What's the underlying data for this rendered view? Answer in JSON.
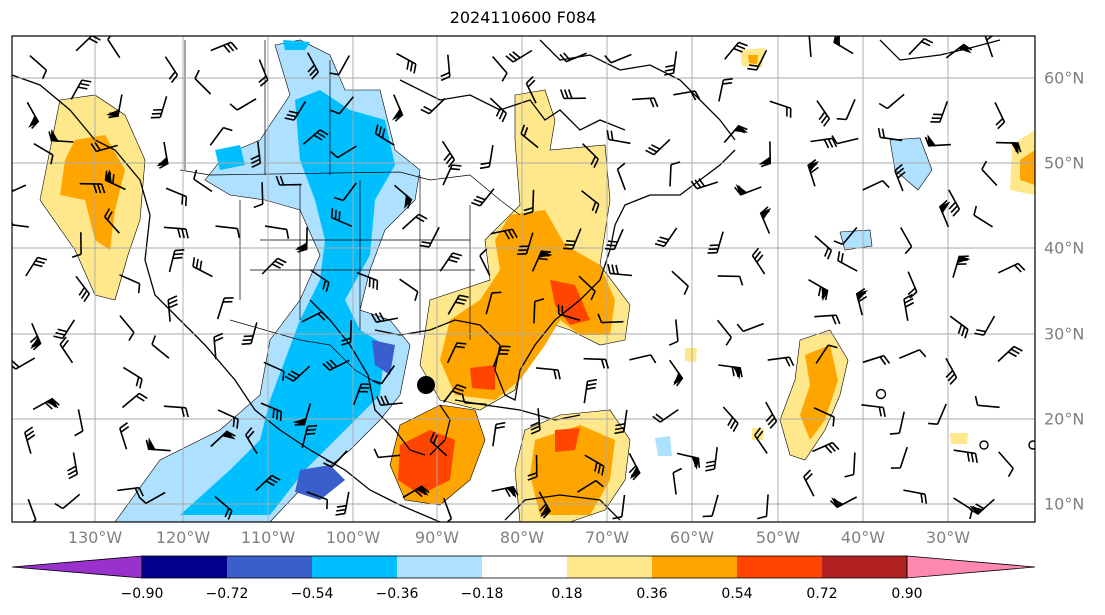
{
  "title": "2024110600 F084",
  "lon_labels": [
    "130°W",
    "120°W",
    "110°W",
    "100°W",
    "90°W",
    "80°W",
    "70°W",
    "60°W",
    "50°W",
    "40°W",
    "30°W"
  ],
  "lat_labels": [
    "60°N",
    "50°N",
    "40°N",
    "30°N",
    "20°N",
    "10°N"
  ],
  "colorbar": {
    "ticks": [
      "−0.90",
      "−0.72",
      "−0.54",
      "−0.36",
      "−0.18",
      "0.18",
      "0.36",
      "0.54",
      "0.72",
      "0.90"
    ],
    "colors": [
      "#9932cc",
      "#00008b",
      "#3a5fcd",
      "#00bfff",
      "#aee0ff",
      "#ffffff",
      "#ffe88c",
      "#ffa500",
      "#ff4500",
      "#b22222",
      "#ff88b0"
    ]
  },
  "colors": {
    "gridline": "#a9a9a9",
    "coastline": "#000000",
    "label": "#808080"
  },
  "marker": "black-dot"
}
